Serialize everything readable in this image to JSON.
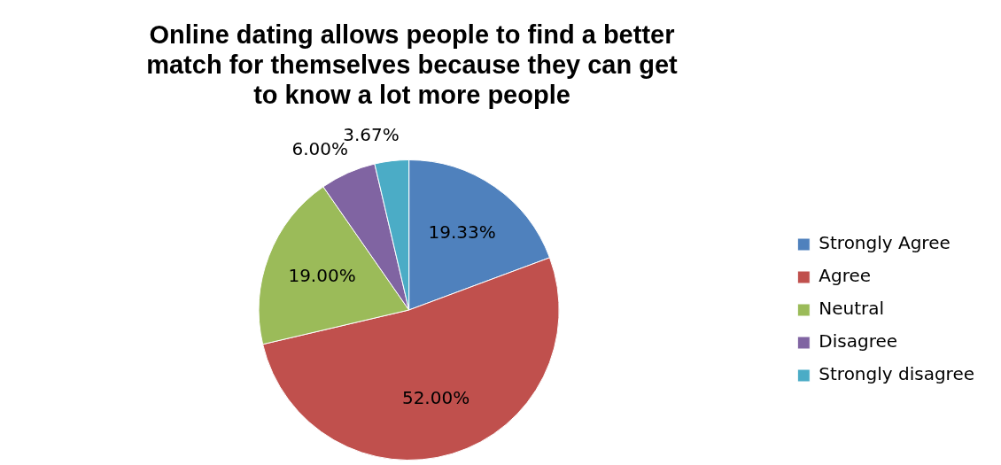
{
  "chart_data": {
    "type": "pie",
    "title": "Online dating allows people to find a better match for themselves because they can get to know a lot more people",
    "categories": [
      "Strongly Agree",
      "Agree",
      "Neutral",
      "Disagree",
      "Strongly disagree"
    ],
    "values": [
      19.33,
      52.0,
      19.0,
      6.0,
      3.67
    ],
    "value_labels": [
      "19.33%",
      "52.00%",
      "19.00%",
      "6.00%",
      "3.67%"
    ],
    "colors": [
      "#4f81bd",
      "#c0504d",
      "#9bbb59",
      "#8064a2",
      "#4bacc6"
    ],
    "legend": "right"
  }
}
